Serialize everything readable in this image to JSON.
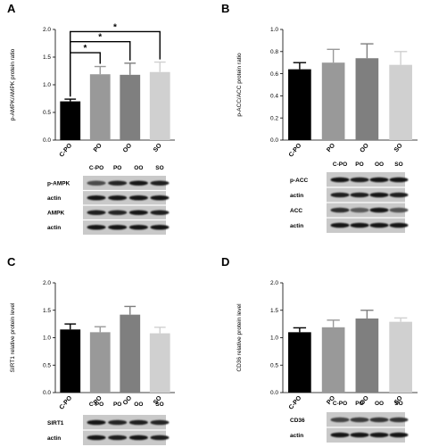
{
  "panels": {
    "A": {
      "letter": "A",
      "chart_data": {
        "type": "bar",
        "categories": [
          "C-PO",
          "PO",
          "OO",
          "SO"
        ],
        "values": [
          0.7,
          1.19,
          1.18,
          1.23
        ],
        "errors": [
          0.04,
          0.14,
          0.21,
          0.18
        ],
        "colors": [
          "#000000",
          "#999999",
          "#7f7f7f",
          "#d0d0d0"
        ],
        "ylabel": "p-AMPK/AMPK protein ratio",
        "ylim": [
          0,
          2.0
        ],
        "yticks": [
          "0.0",
          "0.5",
          "1.0",
          "1.5",
          "2.0"
        ],
        "significance": [
          {
            "from": "C-PO",
            "to": "PO",
            "label": "*"
          },
          {
            "from": "C-PO",
            "to": "OO",
            "label": "*"
          },
          {
            "from": "C-PO",
            "to": "SO",
            "label": "*"
          }
        ]
      },
      "blot": {
        "lanes": [
          "C-PO",
          "PO",
          "OO",
          "SO"
        ],
        "rows": [
          "p-AMPK",
          "actin",
          "AMPK",
          "actin"
        ]
      }
    },
    "B": {
      "letter": "B",
      "chart_data": {
        "type": "bar",
        "categories": [
          "C-PO",
          "PO",
          "OO",
          "SO"
        ],
        "values": [
          0.64,
          0.7,
          0.74,
          0.68
        ],
        "errors": [
          0.06,
          0.12,
          0.13,
          0.12
        ],
        "colors": [
          "#000000",
          "#999999",
          "#7f7f7f",
          "#d0d0d0"
        ],
        "ylabel": "p-ACC/ACC protein ratio",
        "ylim": [
          0,
          1.0
        ],
        "yticks": [
          "0.0",
          "0.2",
          "0.4",
          "0.6",
          "0.8",
          "1.0"
        ]
      },
      "blot": {
        "lanes": [
          "C-PO",
          "PO",
          "OO",
          "SO"
        ],
        "rows": [
          "p-ACC",
          "actin",
          "ACC",
          "actin"
        ]
      }
    },
    "C": {
      "letter": "C",
      "chart_data": {
        "type": "bar",
        "categories": [
          "C-PO",
          "PO",
          "OO",
          "SO"
        ],
        "values": [
          1.15,
          1.1,
          1.42,
          1.08
        ],
        "errors": [
          0.1,
          0.1,
          0.15,
          0.11
        ],
        "colors": [
          "#000000",
          "#999999",
          "#7f7f7f",
          "#d0d0d0"
        ],
        "ylabel": "SIRT1 relative protein level",
        "ylim": [
          0,
          2.0
        ],
        "yticks": [
          "0.0",
          "0.5",
          "1.0",
          "1.5",
          "2.0"
        ]
      },
      "blot": {
        "lanes": [
          "C-PO",
          "PO",
          "OO",
          "SO"
        ],
        "rows": [
          "SIRT1",
          "actin"
        ]
      }
    },
    "D": {
      "letter": "D",
      "chart_data": {
        "type": "bar",
        "categories": [
          "C-PO",
          "PO",
          "OO",
          "SO"
        ],
        "values": [
          1.1,
          1.19,
          1.35,
          1.29
        ],
        "errors": [
          0.08,
          0.13,
          0.15,
          0.07
        ],
        "colors": [
          "#000000",
          "#999999",
          "#7f7f7f",
          "#d0d0d0"
        ],
        "ylabel": "CD36 relative protein level",
        "ylim": [
          0,
          2.0
        ],
        "yticks": [
          "0.0",
          "0.5",
          "1.0",
          "1.5",
          "2.0"
        ]
      },
      "blot": {
        "lanes": [
          "C-PO",
          "PO",
          "OO",
          "SO"
        ],
        "rows": [
          "CD36",
          "actin"
        ]
      }
    }
  }
}
